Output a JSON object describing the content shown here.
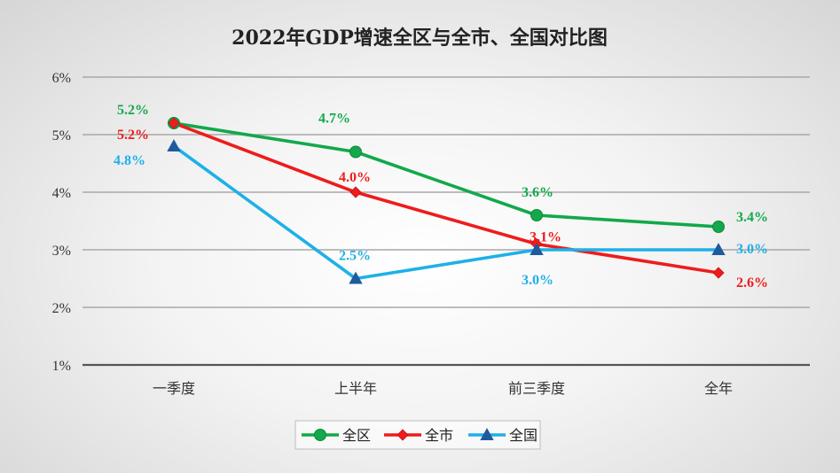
{
  "chart_data": {
    "type": "line",
    "title": "2022年GDP增速全区与全市、全国对比图",
    "categories": [
      "一季度",
      "上半年",
      "前三季度",
      "全年"
    ],
    "y_ticks": [
      "1%",
      "2%",
      "3%",
      "4%",
      "5%",
      "6%"
    ],
    "ylim": [
      1,
      6
    ],
    "grid": true,
    "legend_position": "bottom",
    "series": [
      {
        "name": "全区",
        "color": "#13a84b",
        "marker": "circle",
        "values": [
          5.2,
          4.7,
          3.6,
          3.4
        ],
        "labels": [
          "5.2%",
          "4.7%",
          "3.6%",
          "3.4%"
        ]
      },
      {
        "name": "全市",
        "color": "#ee1c1c",
        "marker": "diamond",
        "values": [
          5.2,
          4.0,
          3.1,
          2.6
        ],
        "labels": [
          "5.2%",
          "4.0%",
          "3.1%",
          "2.6%"
        ]
      },
      {
        "name": "全国",
        "color": "#1eb0e8",
        "marker": "triangle",
        "values": [
          4.8,
          2.5,
          3.0,
          3.0
        ],
        "labels": [
          "4.8%",
          "2.5%",
          "3.0%",
          "3.0%"
        ]
      }
    ]
  }
}
